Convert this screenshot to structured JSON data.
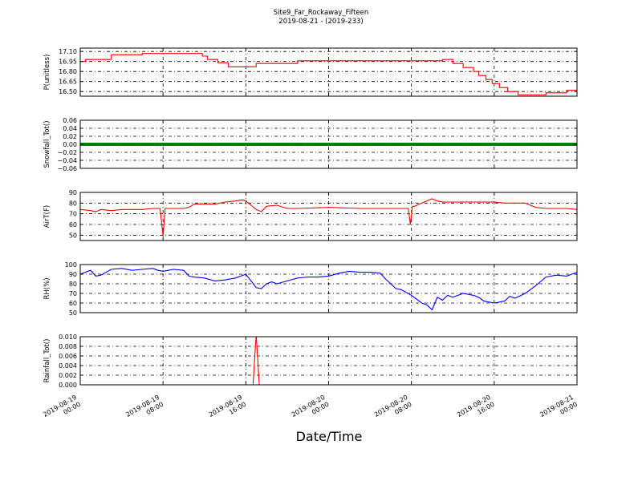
{
  "figure": {
    "title": "Site9_Far_Rockaway_Fifteen",
    "subtitle": "2019-08-21 - (2019-233)",
    "xlabel": "Date/Time"
  },
  "chart_data": {
    "type": "line",
    "x_ticks": [
      {
        "t": 0,
        "line1": "2019-08-19",
        "line2": "00:00"
      },
      {
        "t": 8,
        "line1": "2019-08-19",
        "line2": "08:00"
      },
      {
        "t": 16,
        "line1": "2019-08-19",
        "line2": "16:00"
      },
      {
        "t": 24,
        "line1": "2019-08-20",
        "line2": "00:00"
      },
      {
        "t": 32,
        "line1": "2019-08-20",
        "line2": "08:00"
      },
      {
        "t": 40,
        "line1": "2019-08-20",
        "line2": "16:00"
      },
      {
        "t": 48,
        "line1": "2019-08-21",
        "line2": "00:00"
      }
    ],
    "xlim": [
      0,
      48
    ],
    "grid": true,
    "panels": [
      {
        "ylabel": "P(unitless)",
        "color": "#ff0000",
        "ylim": [
          16.43,
          17.15
        ],
        "yticks": [
          "17.10",
          "16.95",
          "16.80",
          "16.65",
          "16.50"
        ],
        "ytick_values": [
          17.1,
          16.95,
          16.8,
          16.65,
          16.5
        ],
        "step": true,
        "x": [
          0,
          0.5,
          3,
          6,
          8,
          11,
          11.8,
          12.3,
          13.3,
          14.3,
          15,
          17,
          19.5,
          21,
          35,
          36,
          37,
          38,
          38.5,
          39.2,
          39.8,
          40.5,
          41.3,
          42.3,
          45,
          46.5,
          47,
          48
        ],
        "y": [
          16.95,
          16.98,
          17.05,
          17.07,
          17.07,
          17.07,
          17.03,
          16.98,
          16.93,
          16.87,
          16.87,
          16.92,
          16.92,
          16.96,
          16.98,
          16.92,
          16.86,
          16.8,
          16.74,
          16.68,
          16.62,
          16.56,
          16.5,
          16.45,
          16.48,
          16.48,
          16.52,
          16.52
        ]
      },
      {
        "ylabel": "Snowfall_Tot()",
        "color": "#008000",
        "ylim": [
          -0.06,
          0.06
        ],
        "yticks": [
          "0.06",
          "0.04",
          "0.02",
          "0.00",
          "−0.02",
          "−0.04",
          "−0.06"
        ],
        "ytick_values": [
          0.06,
          0.04,
          0.02,
          0.0,
          -0.02,
          -0.04,
          -0.06
        ],
        "markers": true,
        "x": [
          0,
          48
        ],
        "y": [
          0,
          0
        ]
      },
      {
        "ylabel": "AirT(F)",
        "color": "#ff0000",
        "ylim": [
          45,
          90
        ],
        "yticks": [
          "90",
          "80",
          "70",
          "60",
          "50"
        ],
        "ytick_values": [
          90,
          80,
          70,
          60,
          50
        ],
        "x": [
          0,
          1,
          1.5,
          2,
          3,
          4,
          5,
          6,
          7,
          7.7,
          7.8,
          8,
          8.2,
          9,
          10,
          10.5,
          11,
          12,
          13,
          14,
          15,
          15.7,
          16,
          16.5,
          17,
          17.5,
          18,
          19,
          20,
          21,
          24,
          27,
          30,
          31,
          31.7,
          31.9,
          32.1,
          32.3,
          33,
          33.5,
          34,
          34.5,
          35,
          36,
          37,
          38,
          39,
          40,
          41,
          42,
          43,
          44,
          45,
          46,
          47,
          48
        ],
        "y": [
          74,
          73,
          72,
          74,
          73,
          74,
          74,
          74,
          75,
          75,
          68,
          49,
          75,
          75,
          75,
          76,
          79,
          79,
          79,
          81,
          82,
          83,
          82,
          78,
          74,
          72,
          77,
          78,
          75,
          75,
          76,
          75,
          75,
          75,
          75,
          60,
          77,
          77,
          80,
          82,
          84,
          82,
          81,
          81,
          81,
          81,
          81,
          81,
          80,
          80,
          80,
          76,
          75,
          75,
          75,
          74
        ]
      },
      {
        "ylabel": "RH(%)",
        "color": "#0000ff",
        "ylim": [
          50,
          100
        ],
        "yticks": [
          "100",
          "90",
          "80",
          "70",
          "60",
          "50"
        ],
        "ytick_values": [
          100,
          90,
          80,
          70,
          60,
          50
        ],
        "x": [
          0,
          1,
          1.5,
          2,
          3,
          4,
          5,
          6,
          7,
          7.5,
          8,
          8.5,
          9,
          10,
          10.5,
          11,
          12,
          13,
          14,
          15,
          16,
          17,
          17.5,
          18,
          18.5,
          19,
          20,
          21,
          22,
          23,
          24,
          25,
          26,
          27,
          28,
          29,
          29.5,
          30,
          30.5,
          31,
          32,
          33,
          33.5,
          34,
          34.5,
          35,
          35.5,
          36,
          37,
          38,
          38.5,
          39,
          40,
          41,
          41.5,
          42,
          43,
          44,
          45,
          46,
          47,
          48
        ],
        "y": [
          90,
          94,
          88,
          89,
          95,
          96,
          94,
          95,
          96,
          94,
          93,
          94,
          95,
          94,
          88,
          87,
          86,
          83,
          84,
          86,
          90,
          76,
          75,
          80,
          82,
          80,
          83,
          86,
          87,
          87,
          88,
          91,
          93,
          92,
          92,
          91,
          85,
          80,
          75,
          74,
          68,
          60,
          58,
          53,
          66,
          63,
          68,
          66,
          70,
          68,
          66,
          62,
          60,
          62,
          67,
          65,
          70,
          78,
          87,
          89,
          88,
          92
        ]
      },
      {
        "ylabel": "Rainfall_Tot()",
        "color": "#ff0000",
        "ylim": [
          0,
          0.01
        ],
        "yticks": [
          "0.010",
          "0.008",
          "0.006",
          "0.004",
          "0.002",
          "0.000"
        ],
        "ytick_values": [
          0.01,
          0.008,
          0.006,
          0.004,
          0.002,
          0.0
        ],
        "x": [
          0,
          16.7,
          17,
          17.3,
          48
        ],
        "y": [
          0,
          0,
          0.0105,
          0,
          0
        ]
      }
    ]
  }
}
